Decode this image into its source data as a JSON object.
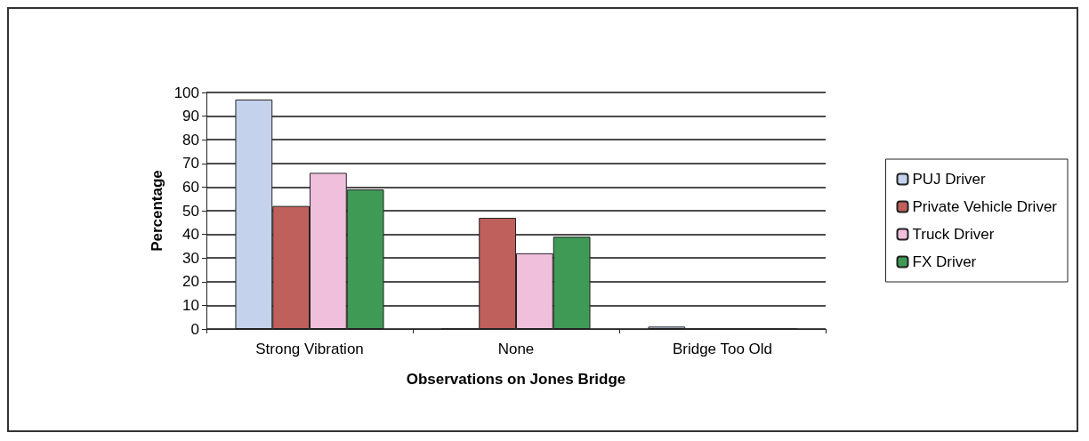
{
  "chart_data": {
    "type": "bar",
    "xlabel": "Observations on Jones Bridge",
    "ylabel": "Percentage",
    "categories": [
      "Strong Vibration",
      "None",
      "Bridge Too Old"
    ],
    "series": [
      {
        "name": "PUJ Driver",
        "color": "#c5d2ec",
        "values": [
          97,
          0,
          1
        ]
      },
      {
        "name": "Private Vehicle Driver",
        "color": "#c0605c",
        "values": [
          52,
          47,
          0
        ]
      },
      {
        "name": "Truck Driver",
        "color": "#f0bfdc",
        "values": [
          66,
          32,
          0
        ]
      },
      {
        "name": "FX Driver",
        "color": "#3f9a55",
        "values": [
          59,
          39,
          0
        ]
      }
    ],
    "ylim": [
      0,
      100
    ],
    "yticks": [
      0,
      10,
      20,
      30,
      40,
      50,
      60,
      70,
      80,
      90,
      100
    ],
    "grid": "y",
    "legend": "right"
  }
}
